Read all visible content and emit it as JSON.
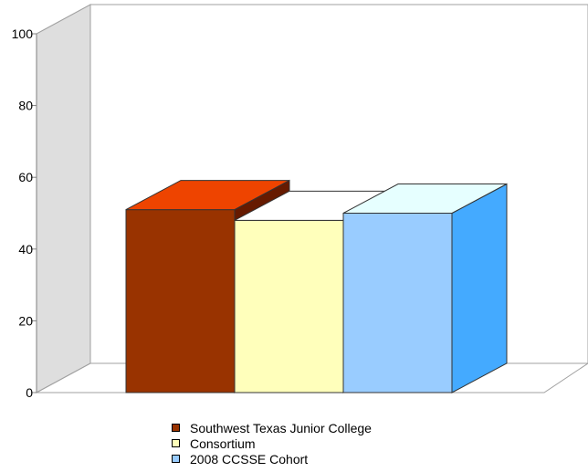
{
  "chart_data": {
    "type": "bar",
    "categories": [
      ""
    ],
    "series": [
      {
        "name": "Southwest Texas Junior College",
        "values": [
          51
        ],
        "color": "#993300",
        "top_color": "#ee4400",
        "side_color": "#661a00"
      },
      {
        "name": "Consortium",
        "values": [
          48
        ],
        "color": "#ffffbb",
        "top_color": "#ffffff",
        "side_color": "#ffffee"
      },
      {
        "name": "2008 CCSSE Cohort",
        "values": [
          50
        ],
        "color": "#99ccff",
        "top_color": "#e6ffff",
        "side_color": "#44aaff"
      }
    ],
    "yticks": [
      "0",
      "20",
      "40",
      "60",
      "80",
      "100"
    ],
    "ylim": [
      0,
      100
    ],
    "title": "",
    "xlabel": "",
    "ylabel": "",
    "legend_position": "bottom",
    "grid": false,
    "style": "3d"
  }
}
